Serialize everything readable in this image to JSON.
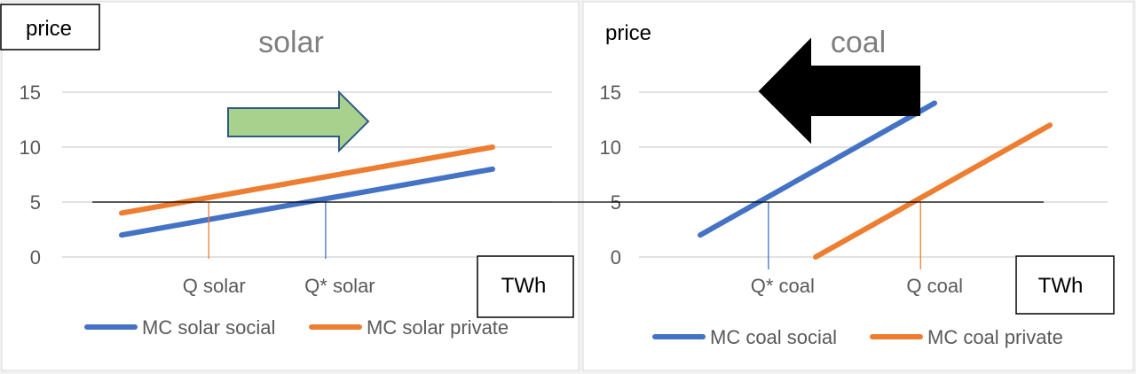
{
  "chart_data": [
    {
      "type": "line",
      "title": "solar",
      "ylabel": "price",
      "xlabel": "TWh",
      "y_ticks": [
        0,
        5,
        10,
        15
      ],
      "ylim": [
        0,
        15
      ],
      "series": [
        {
          "name": "MC solar social",
          "color": "#4472C4",
          "points": [
            [
              0,
              2
            ],
            [
              100,
              8
            ]
          ]
        },
        {
          "name": "MC solar private",
          "color": "#ED7D31",
          "points": [
            [
              0,
              4
            ],
            [
              100,
              10
            ]
          ]
        }
      ],
      "price_line": 5,
      "quantity_markers": [
        {
          "label": "Q solar",
          "x": 23.5,
          "color": "#ED7D31"
        },
        {
          "label": "Q* solar",
          "x": 55,
          "color": "#4472C4"
        }
      ],
      "arrow": {
        "direction": "right",
        "color": "#A9D18E",
        "stroke": "#2E5A86"
      },
      "legend": "bottom"
    },
    {
      "type": "line",
      "title": "coal",
      "ylabel": "price",
      "xlabel": "TWh",
      "y_ticks": [
        0,
        5,
        10,
        15
      ],
      "ylim": [
        0,
        15
      ],
      "series": [
        {
          "name": "MC coal social",
          "color": "#4472C4",
          "points": [
            [
              0,
              2
            ],
            [
              67,
              14
            ]
          ]
        },
        {
          "name": "MC coal private",
          "color": "#ED7D31",
          "points": [
            [
              33,
              0
            ],
            [
              100,
              12
            ]
          ]
        }
      ],
      "price_line": 5,
      "quantity_markers": [
        {
          "label": "Q* coal",
          "x": 19.5,
          "color": "#4472C4"
        },
        {
          "label": "Q coal",
          "x": 63,
          "color": "#ED7D31"
        }
      ],
      "arrow": {
        "direction": "left",
        "color": "#000000",
        "stroke": "#000000"
      },
      "legend": "bottom"
    }
  ]
}
